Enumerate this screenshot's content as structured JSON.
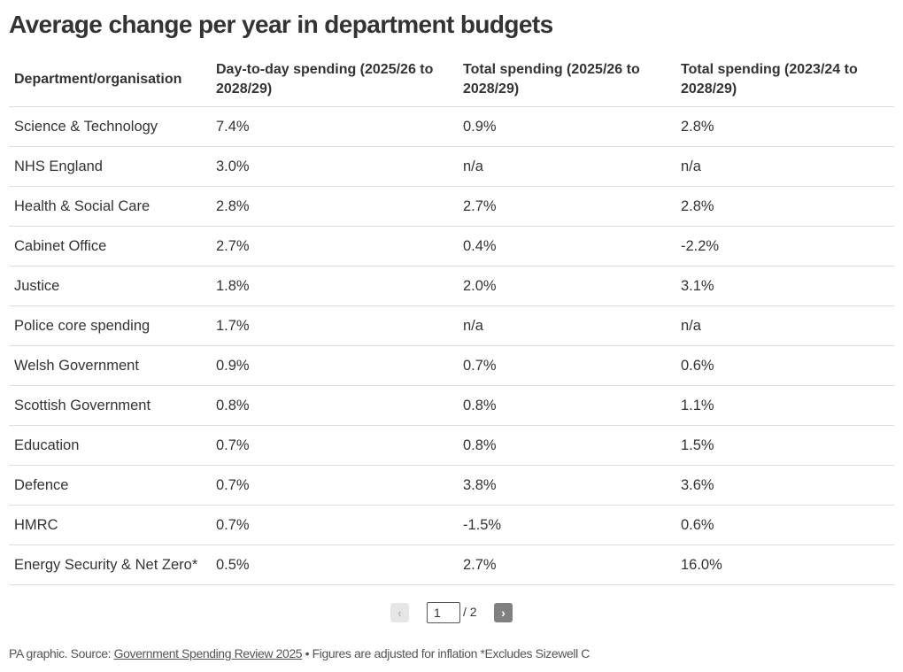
{
  "chart_data": {
    "type": "table",
    "title": "Average change per year in department budgets",
    "columns": [
      "Department/organisation",
      "Day-to-day spending (2025/26 to 2028/29)",
      "Total spending (2025/26 to 2028/29)",
      "Total spending (2023/24 to 2028/29)"
    ],
    "rows": [
      [
        "Science & Technology",
        "7.4%",
        "0.9%",
        "2.8%"
      ],
      [
        "NHS England",
        "3.0%",
        "n/a",
        "n/a"
      ],
      [
        "Health & Social Care",
        "2.8%",
        "2.7%",
        "2.8%"
      ],
      [
        "Cabinet Office",
        "2.7%",
        "0.4%",
        "-2.2%"
      ],
      [
        "Justice",
        "1.8%",
        "2.0%",
        "3.1%"
      ],
      [
        "Police core spending",
        "1.7%",
        "n/a",
        "n/a"
      ],
      [
        "Welsh Government",
        "0.9%",
        "0.7%",
        "0.6%"
      ],
      [
        "Scottish Government",
        "0.8%",
        "0.8%",
        "1.1%"
      ],
      [
        "Education",
        "0.7%",
        "0.8%",
        "1.5%"
      ],
      [
        "Defence",
        "0.7%",
        "3.8%",
        "3.6%"
      ],
      [
        "HMRC",
        "0.7%",
        "-1.5%",
        "0.6%"
      ],
      [
        "Energy Security & Net Zero*",
        "0.5%",
        "2.7%",
        "16.0%"
      ]
    ]
  },
  "pagination": {
    "prev_label": "‹",
    "current_page": "1",
    "total_label": "/ 2",
    "next_label": "›"
  },
  "footer": {
    "prefix": "PA graphic. Source: ",
    "source_link": "Government Spending Review 2025",
    "suffix": " • Figures are adjusted for inflation *Excludes Sizewell C"
  }
}
